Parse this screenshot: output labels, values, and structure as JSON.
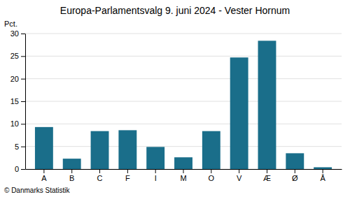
{
  "chart_data": {
    "type": "bar",
    "title": "Europa-Parlamentsvalg 9. juni 2024 - Vester Hornum",
    "categories": [
      "A",
      "B",
      "C",
      "F",
      "I",
      "M",
      "O",
      "V",
      "Æ",
      "Ø",
      "Å"
    ],
    "values": [
      9.3,
      2.3,
      8.4,
      8.6,
      4.9,
      2.6,
      8.4,
      24.7,
      28.4,
      3.5,
      0.4
    ],
    "color": "#1a6e8a",
    "ylabel": "Pct.",
    "ylim": [
      0,
      30
    ],
    "yticks": [
      0,
      5,
      10,
      15,
      20,
      25,
      30
    ],
    "grid": true,
    "annotations": [
      "© Danmarks Statistik"
    ]
  }
}
